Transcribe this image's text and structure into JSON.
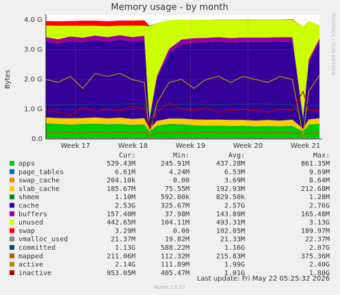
{
  "chart_data": {
    "type": "area",
    "title": "Memory usage - by month",
    "ylabel": "Bytes",
    "watermark": "RRDTOOL / TOBI OETIKER",
    "x": [
      0,
      1.5,
      3,
      4.5,
      6,
      7.5,
      9,
      10.5,
      12,
      12.6,
      13.5,
      15,
      16.5,
      18,
      19.5,
      21,
      22.5,
      24,
      25.5,
      27,
      28.5,
      30,
      31.3,
      32,
      33.3
    ],
    "xlim": [
      0,
      33.3
    ],
    "xticks": [
      {
        "value": 3.6,
        "label": "Week 17"
      },
      {
        "value": 10.6,
        "label": "Week 18"
      },
      {
        "value": 17.6,
        "label": "Week 19"
      },
      {
        "value": 24.6,
        "label": "Week 20"
      },
      {
        "value": 31.6,
        "label": "Week 21"
      }
    ],
    "ylim": [
      0,
      4
    ],
    "yticks": [
      {
        "value": 0,
        "label": "0.0"
      },
      {
        "value": 1,
        "label": "1.0 G"
      },
      {
        "value": 2,
        "label": "2.0 G"
      },
      {
        "value": 3,
        "label": "3.0 G"
      },
      {
        "value": 4,
        "label": "4.0 G"
      }
    ],
    "grid": true,
    "stat_headers": [
      "Cur:",
      "Min:",
      "Avg:",
      "Max:"
    ],
    "series": [
      {
        "name": "apps",
        "color": "#00cc00",
        "kind": "stack",
        "stats": [
          "529.43M",
          "245.91M",
          "437.28M",
          "861.35M"
        ],
        "values": [
          0.52,
          0.5,
          0.48,
          0.5,
          0.51,
          0.49,
          0.5,
          0.47,
          0.48,
          0.24,
          0.45,
          0.5,
          0.49,
          0.46,
          0.44,
          0.45,
          0.43,
          0.44,
          0.42,
          0.43,
          0.42,
          0.44,
          0.25,
          0.48,
          0.51
        ]
      },
      {
        "name": "page_tables",
        "color": "#0066b3",
        "kind": "stack",
        "stats": [
          "6.61M",
          "4.24M",
          "6.53M",
          "9.69M"
        ],
        "values": [
          0.006,
          0.006,
          0.006,
          0.006,
          0.006,
          0.006,
          0.006,
          0.006,
          0.006,
          0.004,
          0.006,
          0.006,
          0.006,
          0.006,
          0.006,
          0.006,
          0.006,
          0.006,
          0.006,
          0.006,
          0.006,
          0.006,
          0.004,
          0.006,
          0.006
        ]
      },
      {
        "name": "swap_cache",
        "color": "#ff8000",
        "kind": "stack",
        "stats": [
          "204.10k",
          "0.00",
          "3.69M",
          "8.64M"
        ],
        "values": [
          0.004,
          0.004,
          0.005,
          0.005,
          0.006,
          0.006,
          0.007,
          0.007,
          0.008,
          0,
          0,
          0,
          0,
          0,
          0,
          0.001,
          0.001,
          0.001,
          0.001,
          0.001,
          0.001,
          0.001,
          0,
          0,
          0.0002
        ]
      },
      {
        "name": "slab_cache",
        "color": "#ffcc00",
        "kind": "stack",
        "stats": [
          "185.67M",
          "75.55M",
          "192.93M",
          "212.68M"
        ],
        "values": [
          0.19,
          0.19,
          0.2,
          0.19,
          0.2,
          0.19,
          0.2,
          0.19,
          0.2,
          0.08,
          0.15,
          0.18,
          0.19,
          0.19,
          0.2,
          0.19,
          0.2,
          0.19,
          0.19,
          0.2,
          0.19,
          0.2,
          0.09,
          0.17,
          0.18
        ]
      },
      {
        "name": "shmem",
        "color": "#008f00",
        "kind": "stack",
        "stats": [
          "1.10M",
          "592.00k",
          "829.50k",
          "1.28M"
        ],
        "values": [
          0.001,
          0.001,
          0.001,
          0.001,
          0.001,
          0.001,
          0.001,
          0.001,
          0.001,
          0.001,
          0.001,
          0.001,
          0.001,
          0.001,
          0.001,
          0.001,
          0.001,
          0.001,
          0.001,
          0.001,
          0.001,
          0.001,
          0.001,
          0.001,
          0.001
        ]
      },
      {
        "name": "cache",
        "color": "#330099",
        "kind": "stack",
        "stats": [
          "2.53G",
          "325.67M",
          "2.57G",
          "2.76G"
        ],
        "values": [
          2.55,
          2.5,
          2.6,
          2.55,
          2.6,
          2.58,
          2.62,
          2.6,
          2.62,
          0.32,
          1.4,
          2.2,
          2.5,
          2.58,
          2.6,
          2.62,
          2.6,
          2.62,
          2.64,
          2.62,
          2.65,
          2.62,
          0.34,
          1.9,
          2.53
        ]
      },
      {
        "name": "buffers",
        "color": "#990099",
        "kind": "stack",
        "stats": [
          "157.40M",
          "37.98M",
          "143.89M",
          "165.48M"
        ],
        "values": [
          0.15,
          0.15,
          0.15,
          0.15,
          0.15,
          0.15,
          0.15,
          0.15,
          0.15,
          0.04,
          0.1,
          0.14,
          0.15,
          0.15,
          0.15,
          0.15,
          0.15,
          0.15,
          0.15,
          0.15,
          0.15,
          0.15,
          0.04,
          0.12,
          0.15
        ]
      },
      {
        "name": "unused",
        "color": "#ccff00",
        "kind": "stack",
        "stats": [
          "442.65M",
          "104.11M",
          "493.31M",
          "3.13G"
        ],
        "values": [
          0.39,
          0.45,
          0.36,
          0.4,
          0.33,
          0.36,
          0.32,
          0.38,
          0.34,
          3.1,
          1.79,
          0.96,
          0.66,
          0.61,
          0.6,
          0.58,
          0.61,
          0.59,
          0.59,
          0.59,
          0.58,
          0.58,
          3.05,
          1.29,
          0.43
        ]
      },
      {
        "name": "swap",
        "color": "#ff0000",
        "kind": "stack",
        "stats": [
          "3.29M",
          "0.00",
          "102.05M",
          "189.97M"
        ],
        "values": [
          0.15,
          0.15,
          0.16,
          0.17,
          0.17,
          0.17,
          0.17,
          0.17,
          0.18,
          0.02,
          0,
          0,
          0,
          0,
          0,
          0.01,
          0.01,
          0.01,
          0.01,
          0.01,
          0.01,
          0.02,
          0,
          0,
          0.003
        ]
      },
      {
        "name": "vmalloc_used",
        "color": "#888888",
        "kind": "line",
        "stats": [
          "21.37M",
          "19.82M",
          "21.33M",
          "22.37M"
        ],
        "values": [
          0.02,
          0.02,
          0.02,
          0.02,
          0.02,
          0.02,
          0.02,
          0.02,
          0.02,
          0.02,
          0.02,
          0.02,
          0.02,
          0.02,
          0.02,
          0.02,
          0.02,
          0.02,
          0.02,
          0.02,
          0.02,
          0.02,
          0.02,
          0.02,
          0.02
        ]
      },
      {
        "name": "committed",
        "color": "#00487d",
        "kind": "line",
        "stats": [
          "1.13G",
          "588.22M",
          "1.16G",
          "2.07G"
        ],
        "values": [
          1.15,
          1.14,
          1.16,
          1.15,
          1.17,
          1.15,
          1.16,
          1.18,
          1.17,
          0.57,
          1.1,
          1.15,
          1.16,
          1.17,
          1.16,
          1.15,
          1.17,
          1.16,
          1.18,
          1.17,
          1.16,
          1.17,
          0.6,
          1.12,
          1.13
        ]
      },
      {
        "name": "mapped",
        "color": "#b35a00",
        "kind": "line",
        "stats": [
          "211.06M",
          "112.32M",
          "215.83M",
          "375.36M"
        ],
        "values": [
          0.21,
          0.21,
          0.22,
          0.21,
          0.22,
          0.21,
          0.22,
          0.21,
          0.22,
          0.11,
          0.2,
          0.21,
          0.22,
          0.21,
          0.22,
          0.21,
          0.22,
          0.21,
          0.22,
          0.21,
          0.22,
          0.21,
          0.12,
          0.2,
          0.21
        ]
      },
      {
        "name": "active",
        "color": "#b38f00",
        "kind": "line",
        "stats": [
          "2.14G",
          "111.89M",
          "1.99G",
          "2.40G"
        ],
        "values": [
          2.0,
          1.9,
          2.1,
          1.7,
          2.2,
          2.1,
          2.2,
          2.0,
          1.9,
          0.11,
          1.2,
          1.9,
          2.0,
          1.7,
          2.0,
          2.1,
          1.9,
          2.1,
          2.0,
          1.9,
          2.1,
          2.0,
          0.12,
          1.6,
          2.14
        ]
      },
      {
        "name": "inactive",
        "color": "#b30000",
        "kind": "line",
        "stats": [
          "953.05M",
          "405.47M",
          "1.01G",
          "1.80G"
        ],
        "values": [
          0.95,
          0.9,
          0.8,
          1.05,
          0.9,
          1.0,
          0.95,
          1.1,
          1.0,
          0.4,
          0.9,
          1.2,
          1.0,
          0.95,
          1.05,
          0.9,
          0.95,
          1.0,
          0.95,
          0.9,
          1.0,
          0.95,
          1.6,
          0.95,
          0.95
        ]
      }
    ],
    "last_update": "Last update: Fri May 22 05:25:32 2026",
    "footer": "Munin 2.0.57"
  }
}
